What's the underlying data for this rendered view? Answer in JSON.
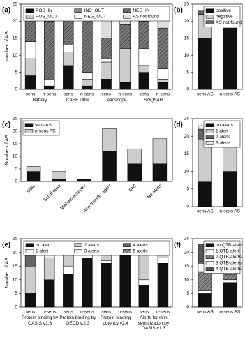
{
  "chart_data": [
    {
      "type": "bar",
      "stacked": true,
      "panel": "(a)",
      "ylabel": "Number of AS",
      "ylim": [
        0,
        25
      ],
      "yticks": [
        0,
        5,
        10,
        15,
        20,
        25
      ],
      "categories": [
        "sens",
        "n-sens",
        "sens",
        "n-sens",
        "sens",
        "n-sens",
        "sens",
        "n-sens"
      ],
      "groups": [
        "Battery",
        "CASE Ultra",
        "Leadscope",
        "SciQSAR"
      ],
      "legend_loc": "upper center",
      "legend_columns": 3,
      "series": [
        {
          "name": "POS_IN",
          "color": "#111111",
          "values": [
            4,
            1,
            7,
            1,
            3,
            2,
            5,
            2
          ]
        },
        {
          "name": "POS_OUT",
          "color": "#cccccc",
          "values": [
            5,
            0,
            4,
            2,
            5,
            10,
            2,
            1
          ]
        },
        {
          "name": "INC_OUT",
          "color": "#888888",
          "values": [
            0,
            0,
            0,
            0,
            0,
            0,
            0,
            0
          ]
        },
        {
          "name": "NEG_OUT",
          "color": "#ffffff",
          "values": [
            5,
            2,
            2,
            2,
            1,
            0,
            5,
            3
          ]
        },
        {
          "name": "NEG_IN",
          "color": "#777777",
          "hatch": true,
          "values": [
            7,
            17,
            8,
            17,
            6,
            7,
            8,
            12
          ]
        },
        {
          "name": "AS not found",
          "color": "#dddddd",
          "values": [
            2,
            4,
            2,
            2,
            8,
            5,
            3,
            6
          ]
        }
      ]
    },
    {
      "type": "bar",
      "stacked": true,
      "panel": "(b)",
      "ylim": [
        0,
        25
      ],
      "yticks": [
        0,
        5,
        10,
        15,
        20,
        25
      ],
      "categories": [
        "sens AS",
        "n-sens AS"
      ],
      "legend_loc": "upper right",
      "legend_columns": 1,
      "series": [
        {
          "name": "positive",
          "color": "#111111",
          "values": [
            15,
            18
          ]
        },
        {
          "name": "negative",
          "color": "#cccccc",
          "values": [
            7,
            4
          ]
        },
        {
          "name": "AS not found",
          "color": "#666666",
          "values": [
            1,
            2
          ]
        }
      ]
    },
    {
      "type": "bar",
      "stacked": true,
      "panel": "(c)",
      "ylabel": "Number of AS",
      "ylim": [
        0,
        25
      ],
      "yticks": [
        0,
        5,
        10,
        15,
        20,
        25
      ],
      "categories": [
        "SNAr",
        "Schiff base",
        "Michael acceptor",
        "Acyl transfer agent",
        "SN2",
        "No Alerts"
      ],
      "rotate_labels": true,
      "legend_loc": "upper left",
      "legend_columns": 1,
      "series": [
        {
          "name": "sens AS",
          "color": "#111111",
          "values": [
            4,
            1,
            1,
            12,
            7,
            7
          ]
        },
        {
          "name": "n-sens AS",
          "color": "#cccccc",
          "values": [
            2,
            3,
            0,
            9,
            6,
            10
          ]
        }
      ]
    },
    {
      "type": "bar",
      "stacked": true,
      "panel": "(d)",
      "ylim": [
        0,
        25
      ],
      "yticks": [
        0,
        5,
        10,
        15,
        20,
        25
      ],
      "categories": [
        "sens AS",
        "n-sens AS"
      ],
      "legend_loc": "upper right",
      "legend_columns": 1,
      "series": [
        {
          "name": "no alerts",
          "color": "#111111",
          "values": [
            7,
            10
          ]
        },
        {
          "name": "1 alert",
          "color": "#cccccc",
          "values": [
            12,
            9
          ]
        },
        {
          "name": "2 alerts",
          "color": "#666666",
          "values": [
            3,
            5
          ]
        },
        {
          "name": "3 alerts",
          "color": "#e8e8e8",
          "values": [
            1,
            0
          ]
        }
      ]
    },
    {
      "type": "bar",
      "stacked": true,
      "panel": "(e)",
      "ylabel": "Number of AS",
      "ylim": [
        0,
        25
      ],
      "yticks": [
        0,
        5,
        10,
        15,
        20,
        25
      ],
      "categories": [
        "sens",
        "n-sens",
        "sens",
        "n-sens",
        "sens",
        "n-sens",
        "sens",
        "n-sens"
      ],
      "groups": [
        "Protein binding by OASIS v1.3",
        "Protein binding by OECD v.2.3",
        "Protein binding potency v2.4",
        "Alerts for skin sensitization by OASIS v1.3"
      ],
      "legend_loc": "upper center",
      "legend_columns": 3,
      "series": [
        {
          "name": "no alert",
          "color": "#111111",
          "values": [
            5,
            10,
            12,
            18,
            16,
            21,
            8,
            16
          ]
        },
        {
          "name": "1 alert",
          "color": "#ffffff",
          "values": [
            0,
            0,
            3,
            2,
            1,
            1,
            2,
            2
          ]
        },
        {
          "name": "2 alerts",
          "color": "#cccccc",
          "values": [
            10,
            8,
            6,
            3,
            5,
            2,
            10,
            5
          ]
        },
        {
          "name": "3 alerts",
          "color": "#f0f0f0",
          "values": [
            0,
            2,
            0,
            0,
            0,
            0,
            0,
            0
          ]
        },
        {
          "name": "4 alerts",
          "color": "#666666",
          "values": [
            7,
            3,
            2,
            1,
            1,
            0,
            3,
            1
          ]
        },
        {
          "name": "5 alerts",
          "color": "#999999",
          "hatch": true,
          "values": [
            1,
            1,
            0,
            0,
            0,
            0,
            0,
            0
          ]
        }
      ]
    },
    {
      "type": "bar",
      "stacked": true,
      "panel": "(f)",
      "ylim": [
        0,
        25
      ],
      "yticks": [
        0,
        5,
        10,
        15,
        20,
        25
      ],
      "categories": [
        "sens AS",
        "n-sens AS"
      ],
      "legend_loc": "upper right",
      "legend_columns": 1,
      "series": [
        {
          "name": "no QTB-alert",
          "color": "#111111",
          "values": [
            5,
            9
          ]
        },
        {
          "name": "1 QTB-alert",
          "color": "#ffffff",
          "values": [
            1,
            1
          ]
        },
        {
          "name": "2 QTB-alerts",
          "color": "#888888",
          "hatch": true,
          "values": [
            7,
            2
          ]
        },
        {
          "name": "3 QTB-alerts",
          "color": "#ffffff",
          "values": [
            3,
            8
          ]
        },
        {
          "name": "4 QTB-alerts",
          "color": "#555555",
          "values": [
            7,
            4
          ]
        }
      ]
    }
  ]
}
